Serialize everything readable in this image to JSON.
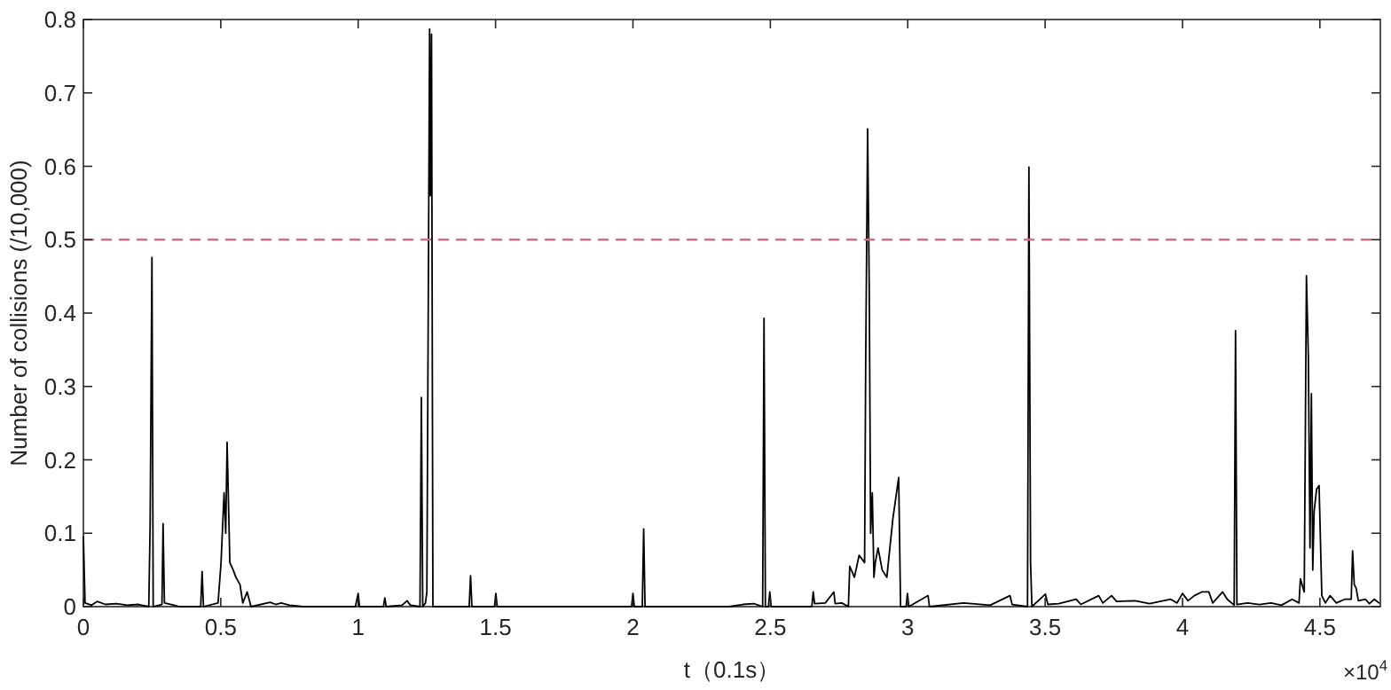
{
  "chart_data": {
    "type": "line",
    "xlabel": "t（0.1s）",
    "ylabel": "Number of collisions (/10,000)",
    "annotations": [
      "×10$^{4}$"
    ],
    "xlim": [
      0,
      4.72
    ],
    "ylim": [
      0,
      0.8
    ],
    "xticks": [
      0,
      0.5,
      1,
      1.5,
      2,
      2.5,
      3,
      3.5,
      4,
      4.5
    ],
    "yticks": [
      0,
      0.1,
      0.2,
      0.3,
      0.4,
      0.5,
      0.6,
      0.7,
      0.8
    ],
    "ref_lines": [
      {
        "axis": "y",
        "value": 0.5,
        "color": "#d4707f",
        "line_style": "dashed"
      }
    ],
    "line_style": "solid",
    "marker": "none",
    "series": [
      {
        "color": "#000000",
        "x": [
          0,
          0.006,
          0.03,
          0.05,
          0.08,
          0.12,
          0.16,
          0.2,
          0.238,
          0.243,
          0.2495,
          0.254,
          0.286,
          0.29,
          0.295,
          0.32,
          0.35,
          0.427,
          0.432,
          0.437,
          0.49,
          0.501,
          0.512,
          0.518,
          0.523,
          0.533,
          0.545,
          0.555,
          0.57,
          0.58,
          0.596,
          0.61,
          0.68,
          0.7,
          0.72,
          0.75,
          0.8,
          0.99,
          1,
          1.005,
          1.092,
          1.097,
          1.102,
          1.16,
          1.178,
          1.19,
          1.225,
          1.23,
          1.235,
          1.245,
          1.25,
          1.26,
          1.263,
          1.267,
          1.272,
          1.404,
          1.409,
          1.414,
          1.496,
          1.501,
          1.506,
          1.995,
          2,
          2.005,
          2.034,
          2.039,
          2.044,
          2.35,
          2.4,
          2.44,
          2.472,
          2.477,
          2.482,
          2.493,
          2.498,
          2.503,
          2.651,
          2.656,
          2.661,
          2.7,
          2.731,
          2.736,
          2.76,
          2.784,
          2.789,
          2.806,
          2.823,
          2.843,
          2.847,
          2.854,
          2.86,
          2.865,
          2.871,
          2.877,
          2.882,
          2.892,
          2.907,
          2.924,
          2.946,
          2.967,
          2.974,
          2.994,
          2.999,
          3.004,
          3.074,
          3.079,
          3.203,
          3.3,
          3.372,
          3.38,
          3.436,
          3.441,
          3.447,
          3.452,
          3.501,
          3.51,
          3.55,
          3.613,
          3.63,
          3.695,
          3.71,
          3.742,
          3.76,
          3.828,
          3.88,
          3.957,
          3.98,
          4,
          4.02,
          4.043,
          4.07,
          4.096,
          4.11,
          4.146,
          4.163,
          4.188,
          4.193,
          4.198,
          4.236,
          4.28,
          4.322,
          4.36,
          4.399,
          4.424,
          4.429,
          4.443,
          4.451,
          4.458,
          4.464,
          4.469,
          4.474,
          4.479,
          4.488,
          4.497,
          4.507,
          4.52,
          4.537,
          4.56,
          4.59,
          4.614,
          4.619,
          4.625,
          4.632,
          4.64,
          4.666,
          4.68,
          4.698,
          4.715
        ],
        "values": [
          0.095,
          0.005,
          0.002,
          0.007,
          0.003,
          0.004,
          0.002,
          0.003,
          0,
          0.114,
          0.476,
          0,
          0.003,
          0.113,
          0.005,
          0.003,
          0,
          0,
          0.048,
          0,
          0.005,
          0.06,
          0.155,
          0.1,
          0.224,
          0.06,
          0.05,
          0.04,
          0.03,
          0.005,
          0.02,
          0,
          0.006,
          0.003,
          0.005,
          0.002,
          0,
          0,
          0.018,
          0,
          0,
          0.012,
          0,
          0.002,
          0.008,
          0.002,
          0,
          0.285,
          0,
          0.005,
          0.02,
          0.787,
          0.56,
          0.78,
          0,
          0,
          0.042,
          0,
          0,
          0.018,
          0,
          0,
          0.018,
          0,
          0,
          0.106,
          0,
          0,
          0.003,
          0.004,
          0,
          0.393,
          0,
          0,
          0.02,
          0,
          0,
          0.02,
          0.004,
          0.005,
          0.02,
          0.004,
          0.005,
          0,
          0.055,
          0.04,
          0.07,
          0.06,
          0.33,
          0.651,
          0.43,
          0.1,
          0.155,
          0.04,
          0.06,
          0.08,
          0.05,
          0.04,
          0.12,
          0.176,
          0,
          0,
          0.018,
          0,
          0.015,
          0,
          0.005,
          0.002,
          0.015,
          0.003,
          0,
          0.599,
          0.06,
          0,
          0.017,
          0.003,
          0.004,
          0.01,
          0.003,
          0.015,
          0.005,
          0.015,
          0.007,
          0.008,
          0.004,
          0.01,
          0.005,
          0.018,
          0.008,
          0.015,
          0.02,
          0.02,
          0.005,
          0.02,
          0.01,
          0.002,
          0.376,
          0.003,
          0.005,
          0.003,
          0.005,
          0.002,
          0.01,
          0.005,
          0.038,
          0.02,
          0.451,
          0.34,
          0.08,
          0.29,
          0.05,
          0.13,
          0.16,
          0.165,
          0.015,
          0.005,
          0.015,
          0.005,
          0.01,
          0.01,
          0.076,
          0.03,
          0.025,
          0.008,
          0.01,
          0.004,
          0.01,
          0.005
        ]
      }
    ]
  }
}
